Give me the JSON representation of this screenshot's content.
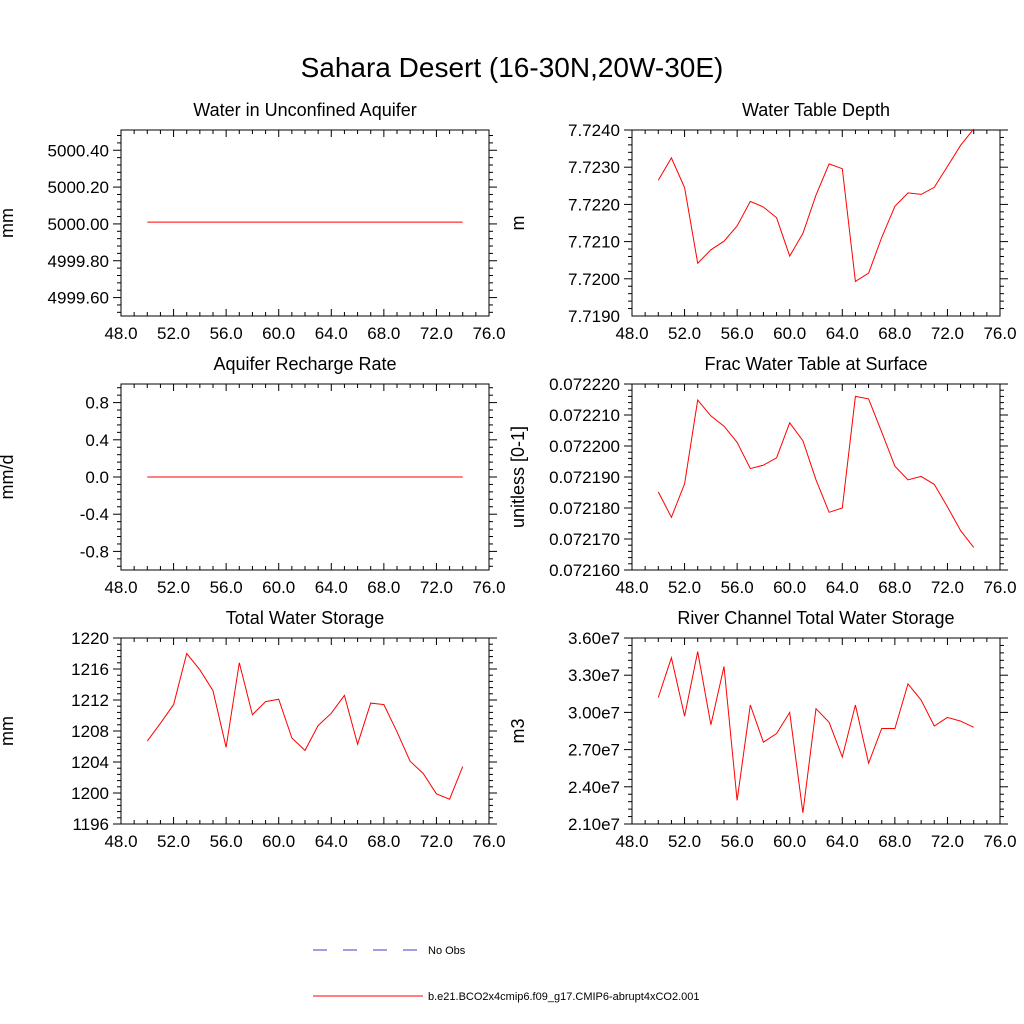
{
  "title": "Sahara Desert (16-30N,20W-30E)",
  "legend": [
    {
      "label": "No Obs",
      "color": "#3c3cc8",
      "style": "dashed"
    },
    {
      "label": "b.e21.BCO2x4cmip6.f09_g17.CMIP6-abrupt4xCO2.001",
      "color": "#ff0000",
      "style": "solid"
    }
  ],
  "chart_data": [
    {
      "type": "line",
      "title": "Water in Unconfined Aquifer",
      "ylabel": "mm",
      "xlim": [
        48,
        76
      ],
      "ylim": [
        4999.5,
        5000.51
      ],
      "xticks": [
        "48.0",
        "52.0",
        "56.0",
        "60.0",
        "64.0",
        "68.0",
        "72.0",
        "76.0"
      ],
      "xtick_values": [
        48,
        52,
        56,
        60,
        64,
        68,
        72,
        76
      ],
      "yticks": [
        "4999.60",
        "4999.80",
        "5000.00",
        "5000.20",
        "5000.40"
      ],
      "ytick_values": [
        4999.6,
        4999.8,
        5000.0,
        5000.2,
        5000.4
      ],
      "series": [
        {
          "color": "#ff0000",
          "x": [
            50,
            51,
            52,
            53,
            54,
            55,
            56,
            57,
            58,
            59,
            60,
            61,
            62,
            63,
            64,
            65,
            66,
            67,
            68,
            69,
            70,
            71,
            72,
            73,
            74
          ],
          "y": [
            5000.01,
            5000.01,
            5000.01,
            5000.01,
            5000.01,
            5000.01,
            5000.01,
            5000.01,
            5000.01,
            5000.01,
            5000.01,
            5000.01,
            5000.01,
            5000.01,
            5000.01,
            5000.01,
            5000.01,
            5000.01,
            5000.01,
            5000.01,
            5000.01,
            5000.01,
            5000.01,
            5000.01,
            5000.01
          ]
        }
      ]
    },
    {
      "type": "line",
      "title": "Water Table Depth",
      "ylabel": "m",
      "xlim": [
        48,
        76
      ],
      "ylim": [
        7.719,
        7.724
      ],
      "xticks": [
        "48.0",
        "52.0",
        "56.0",
        "60.0",
        "64.0",
        "68.0",
        "72.0",
        "76.0"
      ],
      "xtick_values": [
        48,
        52,
        56,
        60,
        64,
        68,
        72,
        76
      ],
      "yticks": [
        "7.7190",
        "7.7200",
        "7.7210",
        "7.7220",
        "7.7230",
        "7.7240"
      ],
      "ytick_values": [
        7.719,
        7.72,
        7.721,
        7.722,
        7.723,
        7.724
      ],
      "series": [
        {
          "color": "#ff0000",
          "x": [
            50,
            51,
            52,
            53,
            54,
            55,
            56,
            57,
            58,
            59,
            60,
            61,
            62,
            63,
            64,
            65,
            66,
            67,
            68,
            69,
            70,
            71,
            72,
            73,
            74
          ],
          "y": [
            7.72265,
            7.72325,
            7.72245,
            7.72042,
            7.72078,
            7.72101,
            7.72142,
            7.72208,
            7.72193,
            7.72164,
            7.72061,
            7.72122,
            7.72225,
            7.72309,
            7.72296,
            7.71993,
            7.72015,
            7.72111,
            7.72195,
            7.72231,
            7.72227,
            7.72246,
            7.72302,
            7.72359,
            7.72403
          ]
        }
      ]
    },
    {
      "type": "line",
      "title": "Aquifer Recharge Rate",
      "ylabel": "mm/d",
      "xlim": [
        48,
        76
      ],
      "ylim": [
        -1.0,
        1.0
      ],
      "xticks": [
        "48.0",
        "52.0",
        "56.0",
        "60.0",
        "64.0",
        "68.0",
        "72.0",
        "76.0"
      ],
      "xtick_values": [
        48,
        52,
        56,
        60,
        64,
        68,
        72,
        76
      ],
      "yticks": [
        "-0.8",
        "-0.4",
        "0.0",
        "0.4",
        "0.8"
      ],
      "ytick_values": [
        -0.8,
        -0.4,
        0.0,
        0.4,
        0.8
      ],
      "series": [
        {
          "color": "#ff0000",
          "x": [
            50,
            51,
            52,
            53,
            54,
            55,
            56,
            57,
            58,
            59,
            60,
            61,
            62,
            63,
            64,
            65,
            66,
            67,
            68,
            69,
            70,
            71,
            72,
            73,
            74
          ],
          "y": [
            0,
            0,
            0,
            0,
            0,
            0,
            0,
            0,
            0,
            0,
            0,
            0,
            0,
            0,
            0,
            0,
            0,
            0,
            0,
            0,
            0,
            0,
            0,
            0,
            0
          ]
        }
      ]
    },
    {
      "type": "line",
      "title": "Frac Water Table at Surface",
      "ylabel": "unitless [0-1]",
      "xlim": [
        48,
        76
      ],
      "ylim": [
        0.07216,
        0.07222
      ],
      "xticks": [
        "48.0",
        "52.0",
        "56.0",
        "60.0",
        "64.0",
        "68.0",
        "72.0",
        "76.0"
      ],
      "xtick_values": [
        48,
        52,
        56,
        60,
        64,
        68,
        72,
        76
      ],
      "yticks": [
        "0.072160",
        "0.072170",
        "0.072180",
        "0.072190",
        "0.072200",
        "0.072210",
        "0.072220"
      ],
      "ytick_values": [
        0.07216,
        0.07217,
        0.07218,
        0.07219,
        0.0722,
        0.07221,
        0.07222
      ],
      "series": [
        {
          "color": "#ff0000",
          "x": [
            50,
            51,
            52,
            53,
            54,
            55,
            56,
            57,
            58,
            59,
            60,
            61,
            62,
            63,
            64,
            65,
            66,
            67,
            68,
            69,
            70,
            71,
            72,
            73,
            74
          ],
          "y": [
            0.0721852,
            0.072177,
            0.0721878,
            0.0722148,
            0.0722097,
            0.0722064,
            0.0722012,
            0.0721927,
            0.0721938,
            0.0721962,
            0.0722075,
            0.0722017,
            0.0721891,
            0.0721786,
            0.07218,
            0.072216,
            0.0722152,
            0.0722045,
            0.0721935,
            0.0721891,
            0.0721902,
            0.0721876,
            0.0721804,
            0.0721727,
            0.0721673
          ]
        }
      ]
    },
    {
      "type": "line",
      "title": "Total Water Storage",
      "ylabel": "mm",
      "xlim": [
        48,
        76
      ],
      "ylim": [
        1196,
        1220
      ],
      "xticks": [
        "48.0",
        "52.0",
        "56.0",
        "60.0",
        "64.0",
        "68.0",
        "72.0",
        "76.0"
      ],
      "xtick_values": [
        48,
        52,
        56,
        60,
        64,
        68,
        72,
        76
      ],
      "yticks": [
        "1196",
        "1200",
        "1204",
        "1208",
        "1212",
        "1216",
        "1220"
      ],
      "ytick_values": [
        1196,
        1200,
        1204,
        1208,
        1212,
        1216,
        1220
      ],
      "series": [
        {
          "color": "#ff0000",
          "x": [
            50,
            51,
            52,
            53,
            54,
            55,
            56,
            57,
            58,
            59,
            60,
            61,
            62,
            63,
            64,
            65,
            66,
            67,
            68,
            69,
            70,
            71,
            72,
            73,
            74
          ],
          "y": [
            1206.7,
            1209.0,
            1211.4,
            1218.0,
            1215.9,
            1213.2,
            1205.9,
            1216.8,
            1210.1,
            1211.8,
            1212.1,
            1207.1,
            1205.5,
            1208.7,
            1210.3,
            1212.6,
            1206.3,
            1211.6,
            1211.4,
            1207.9,
            1204.1,
            1202.5,
            1199.9,
            1199.2,
            1203.4
          ]
        }
      ]
    },
    {
      "type": "line",
      "title": "River Channel Total Water Storage",
      "ylabel": "m3",
      "xlim": [
        48,
        76
      ],
      "ylim": [
        21000000,
        36000000
      ],
      "xticks": [
        "48.0",
        "52.0",
        "56.0",
        "60.0",
        "64.0",
        "68.0",
        "72.0",
        "76.0"
      ],
      "xtick_values": [
        48,
        52,
        56,
        60,
        64,
        68,
        72,
        76
      ],
      "yticks": [
        "2.10e7",
        "2.40e7",
        "2.70e7",
        "3.00e7",
        "3.30e7",
        "3.60e7"
      ],
      "ytick_values": [
        21000000,
        24000000,
        27000000,
        30000000,
        33000000,
        36000000
      ],
      "series": [
        {
          "color": "#ff0000",
          "x": [
            50,
            51,
            52,
            53,
            54,
            55,
            56,
            57,
            58,
            59,
            60,
            61,
            62,
            63,
            64,
            65,
            66,
            67,
            68,
            69,
            70,
            71,
            72,
            73,
            74
          ],
          "y": [
            31200000,
            34400000,
            29700000,
            34900000,
            29000000,
            33700000,
            22900000,
            30600000,
            27600000,
            28300000,
            30000000,
            21900000,
            30300000,
            29200000,
            26400000,
            30600000,
            25900000,
            28700000,
            28700000,
            32300000,
            31000000,
            28900000,
            29600000,
            29300000,
            28800000
          ]
        }
      ]
    }
  ]
}
